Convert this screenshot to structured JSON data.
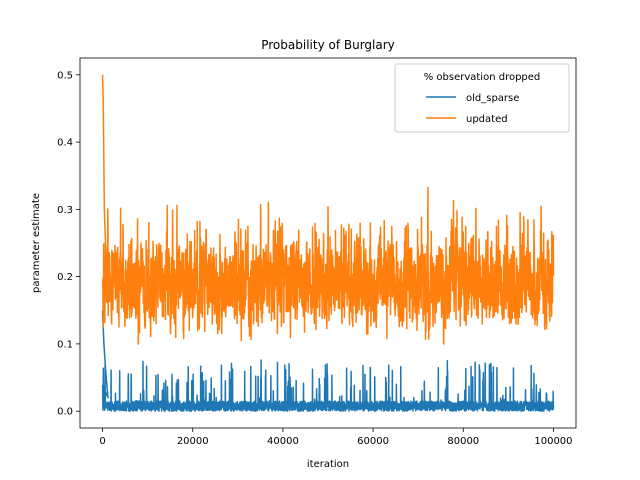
{
  "chart_data": {
    "type": "line",
    "title": "Probability of Burglary",
    "xlabel": "iteration",
    "ylabel": "parameter estimate",
    "xlim": [
      -5000,
      105000
    ],
    "ylim": [
      -0.025,
      0.525
    ],
    "xticks": [
      0,
      20000,
      40000,
      60000,
      80000,
      100000
    ],
    "xtick_labels": [
      "0",
      "20000",
      "40000",
      "60000",
      "80000",
      "100000"
    ],
    "yticks": [
      0.0,
      0.1,
      0.2,
      0.3,
      0.4,
      0.5
    ],
    "ytick_labels": [
      "0.0",
      "0.1",
      "0.2",
      "0.3",
      "0.4",
      "0.5"
    ],
    "grid": false,
    "legend": {
      "title": "% observation dropped",
      "placement": "top-right"
    },
    "series": [
      {
        "name": "old_sparse",
        "color": "#1f77b4",
        "x_range": [
          0,
          100000
        ],
        "initial_peak": 0.15,
        "typical_range": [
          0.0,
          0.03
        ],
        "max": 0.08,
        "summary_points": [
          {
            "x": 0,
            "y": 0.15
          },
          {
            "x": 5000,
            "y": 0.04
          },
          {
            "x": 15000,
            "y": 0.05
          },
          {
            "x": 25000,
            "y": 0.065
          },
          {
            "x": 27000,
            "y": 0.08
          },
          {
            "x": 41000,
            "y": 0.065
          },
          {
            "x": 52000,
            "y": 0.06
          },
          {
            "x": 64000,
            "y": 0.075
          },
          {
            "x": 76000,
            "y": 0.07
          },
          {
            "x": 88000,
            "y": 0.055
          },
          {
            "x": 99000,
            "y": 0.06
          }
        ]
      },
      {
        "name": "updated",
        "color": "#ff7f0e",
        "x_range": [
          0,
          100000
        ],
        "initial_peak": 0.5,
        "typical_range": [
          0.12,
          0.26
        ],
        "min": 0.07,
        "max": 0.36,
        "summary_points": [
          {
            "x": 0,
            "y": 0.5
          },
          {
            "x": 200,
            "y": 0.46
          },
          {
            "x": 11500,
            "y": 0.345
          },
          {
            "x": 29000,
            "y": 0.33
          },
          {
            "x": 40000,
            "y": 0.335
          },
          {
            "x": 60000,
            "y": 0.34
          },
          {
            "x": 66000,
            "y": 0.35
          },
          {
            "x": 87000,
            "y": 0.363
          },
          {
            "x": 89000,
            "y": 0.355
          },
          {
            "x": 85000,
            "y": 0.07
          },
          {
            "x": 90000,
            "y": 0.07
          },
          {
            "x": 100000,
            "y": 0.33
          }
        ]
      }
    ]
  }
}
